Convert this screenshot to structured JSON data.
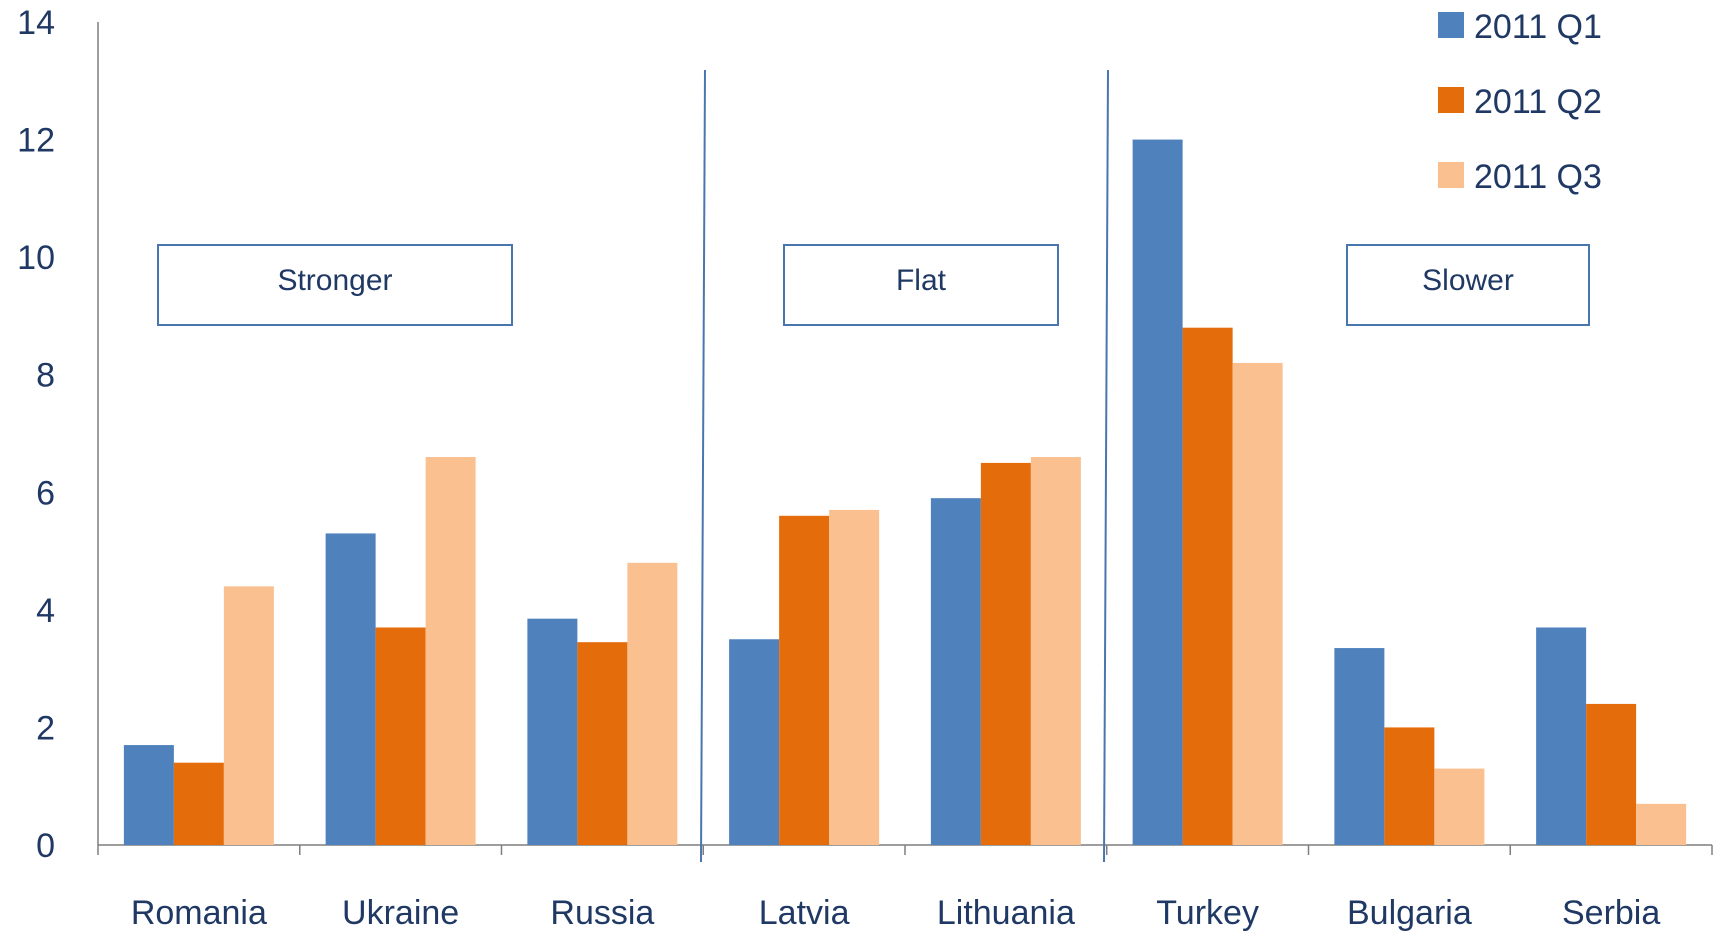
{
  "chart_data": {
    "type": "bar",
    "title": "",
    "xlabel": "",
    "ylabel": "",
    "ylim": [
      0,
      14
    ],
    "yticks": [
      0,
      2,
      4,
      6,
      8,
      10,
      12,
      14
    ],
    "grid": false,
    "legend_position": "top-right",
    "categories": [
      "Romania",
      "Ukraine",
      "Russia",
      "Latvia",
      "Lithuania",
      "Turkey",
      "Bulgaria",
      "Serbia"
    ],
    "series": [
      {
        "name": "2011 Q1",
        "color": "#4f81bd",
        "values": [
          1.7,
          5.3,
          3.85,
          3.5,
          5.9,
          12.0,
          3.35,
          3.7
        ]
      },
      {
        "name": "2011 Q2",
        "color": "#e46c0a",
        "values": [
          1.4,
          3.7,
          3.45,
          5.6,
          6.5,
          8.8,
          2.0,
          2.4
        ]
      },
      {
        "name": "2011 Q3",
        "color": "#fac090",
        "values": [
          4.4,
          6.6,
          4.8,
          5.7,
          6.6,
          8.2,
          1.3,
          0.7
        ]
      }
    ],
    "annotations": [
      {
        "label": "Stronger"
      },
      {
        "label": "Flat"
      },
      {
        "label": "Slower"
      }
    ]
  }
}
